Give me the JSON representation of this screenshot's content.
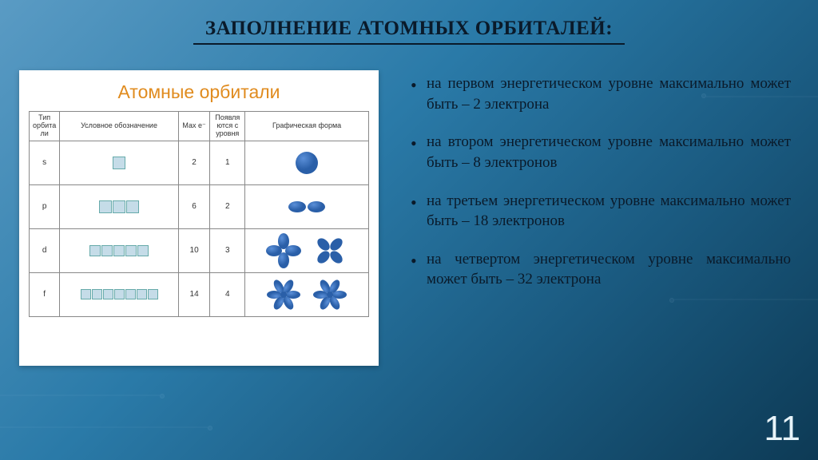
{
  "slide": {
    "title": "ЗАПОЛНЕНИЕ АТОМНЫХ ОРБИТАЛЕЙ:",
    "page_number": "11"
  },
  "card": {
    "title": "Атомные орбитали",
    "columns": [
      "Тип орбита ли",
      "Условное обозначение",
      "Мах e⁻",
      "Появля ются с уровня",
      "Графическая форма"
    ],
    "rows": [
      {
        "type": "s",
        "boxes": 1,
        "max_e": "2",
        "level": "1",
        "shape": "sphere"
      },
      {
        "type": "p",
        "boxes": 3,
        "max_e": "6",
        "level": "2",
        "shape": "dumbbell"
      },
      {
        "type": "d",
        "boxes": 5,
        "max_e": "10",
        "level": "3",
        "shape": "clover4"
      },
      {
        "type": "f",
        "boxes": 7,
        "max_e": "14",
        "level": "4",
        "shape": "clover6"
      }
    ],
    "box_fill": "#c5dce8",
    "box_stroke": "#6aa0b0",
    "orbital_color": "#2a5fa8",
    "orbital_highlight": "#5a8fd8"
  },
  "bullets": [
    "на первом энергетическом уровне максимально может быть – 2 электрона",
    "на втором энергетическом уровне максимально может быть – 8 электронов",
    "на третьем энергетическом уровне максимально может быть – 18 электронов",
    "на четвертом энергетическом уровне максимально может быть – 32 электрона"
  ],
  "styling": {
    "bg_gradient_from": "#5a9bc4",
    "bg_gradient_to": "#0d3a55",
    "title_color": "#0a1a2a",
    "card_title_color": "#e08b1e",
    "bullet_color": "#0a1a2a",
    "page_num_color": "#e8f4fa",
    "title_fontsize": 25,
    "bullet_fontsize": 19,
    "card_title_fontsize": 23
  }
}
